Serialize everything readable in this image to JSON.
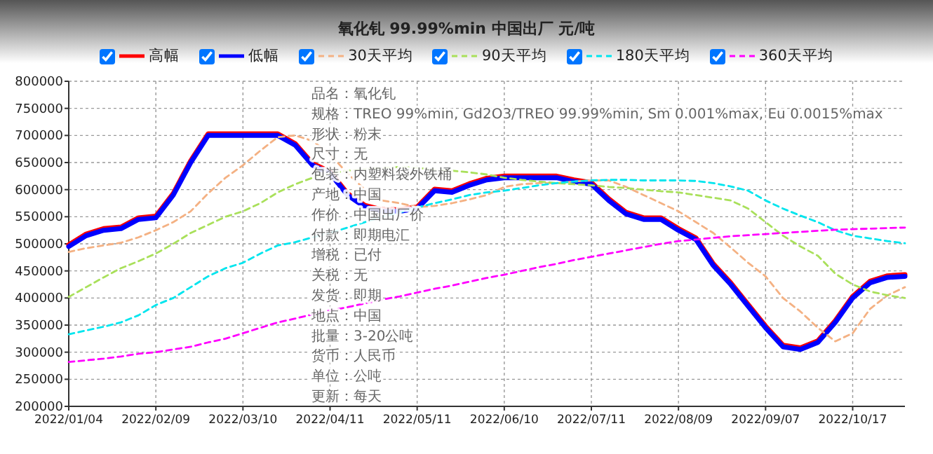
{
  "chart_data": {
    "type": "line",
    "title": "氧化钆 99.99%min 中国出厂 元/吨",
    "categories": [
      "2022/01/04",
      null,
      null,
      null,
      null,
      "2022/02/09",
      null,
      null,
      null,
      null,
      "2022/03/10",
      null,
      null,
      null,
      null,
      "2022/04/11",
      null,
      null,
      null,
      null,
      "2022/05/11",
      null,
      null,
      null,
      null,
      "2022/06/10",
      null,
      null,
      null,
      null,
      "2022/07/11",
      null,
      null,
      null,
      null,
      "2022/08/09",
      null,
      null,
      null,
      null,
      "2022/09/07",
      null,
      null,
      null,
      null,
      "2022/10/17",
      null,
      null,
      null
    ],
    "series": [
      {
        "name": "高幅",
        "color": "#ff0000",
        "line_style": "solid",
        "values": [
          498000,
          518000,
          528000,
          531000,
          548000,
          551000,
          593000,
          653000,
          703000,
          703000,
          703000,
          703000,
          703000,
          685000,
          648000,
          633000,
          593000,
          571000,
          563000,
          563000,
          568000,
          601000,
          598000,
          611000,
          621000,
          625000,
          625000,
          625000,
          625000,
          618000,
          613000,
          583000,
          558000,
          548000,
          548000,
          528000,
          511000,
          463000,
          428000,
          388000,
          348000,
          313000,
          308000,
          321000,
          358000,
          403000,
          431000,
          441000,
          443000
        ]
      },
      {
        "name": "低幅",
        "color": "#0000ff",
        "line_style": "solid",
        "values": [
          495000,
          515000,
          525000,
          528000,
          545000,
          548000,
          590000,
          650000,
          700000,
          700000,
          700000,
          700000,
          700000,
          682000,
          645000,
          630000,
          590000,
          568000,
          560000,
          560000,
          565000,
          598000,
          595000,
          608000,
          618000,
          622000,
          622000,
          622000,
          622000,
          615000,
          610000,
          580000,
          555000,
          545000,
          545000,
          525000,
          508000,
          460000,
          425000,
          385000,
          345000,
          310000,
          305000,
          318000,
          355000,
          400000,
          428000,
          438000,
          440000
        ]
      },
      {
        "name": "30天平均",
        "color": "#f4b183",
        "line_style": "dashed",
        "values": [
          485000,
          492000,
          497000,
          502000,
          512000,
          525000,
          540000,
          560000,
          593000,
          622000,
          645000,
          672000,
          697000,
          700000,
          690000,
          665000,
          630000,
          600000,
          580000,
          575000,
          568000,
          570000,
          575000,
          582000,
          590000,
          605000,
          610000,
          612000,
          612000,
          615000,
          617000,
          617000,
          605000,
          590000,
          575000,
          560000,
          540000,
          520000,
          493000,
          465000,
          440000,
          400000,
          375000,
          345000,
          320000,
          335000,
          380000,
          405000,
          420000
        ]
      },
      {
        "name": "90天平均",
        "color": "#a9e05a",
        "line_style": "dashed",
        "values": [
          402000,
          420000,
          438000,
          455000,
          468000,
          482000,
          500000,
          520000,
          535000,
          550000,
          560000,
          575000,
          595000,
          610000,
          622000,
          630000,
          635000,
          638000,
          640000,
          642000,
          640000,
          637000,
          635000,
          632000,
          628000,
          622000,
          618000,
          615000,
          612000,
          610000,
          608000,
          605000,
          603000,
          600000,
          597000,
          595000,
          590000,
          585000,
          580000,
          565000,
          540000,
          515000,
          495000,
          478000,
          445000,
          425000,
          412000,
          405000,
          400000
        ]
      },
      {
        "name": "180天平均",
        "color": "#00e5ee",
        "line_style": "dashed",
        "values": [
          333000,
          340000,
          347000,
          355000,
          368000,
          387000,
          400000,
          420000,
          440000,
          455000,
          465000,
          482000,
          497000,
          503000,
          512000,
          520000,
          530000,
          540000,
          550000,
          558000,
          567000,
          575000,
          582000,
          590000,
          595000,
          598000,
          603000,
          608000,
          612000,
          615000,
          617000,
          618000,
          618000,
          617000,
          617000,
          617000,
          616000,
          612000,
          606000,
          598000,
          580000,
          565000,
          552000,
          540000,
          525000,
          515000,
          510000,
          505000,
          501000
        ]
      },
      {
        "name": "360天平均",
        "color": "#ff00ff",
        "line_style": "dashed",
        "values": [
          282000,
          285000,
          288000,
          292000,
          297000,
          300000,
          305000,
          310000,
          318000,
          325000,
          335000,
          345000,
          355000,
          362000,
          370000,
          377000,
          383000,
          390000,
          397000,
          403000,
          410000,
          417000,
          423000,
          430000,
          437000,
          443000,
          450000,
          457000,
          463000,
          470000,
          476000,
          482000,
          488000,
          494000,
          500000,
          505000,
          508000,
          511000,
          514000,
          516000,
          518000,
          520000,
          522000,
          524000,
          526000,
          527000,
          528000,
          529000,
          530000
        ]
      }
    ],
    "ylim": [
      200000,
      800000
    ],
    "yticks": [
      200000,
      250000,
      300000,
      350000,
      400000,
      450000,
      500000,
      550000,
      600000,
      650000,
      700000,
      750000,
      800000
    ],
    "grid": true,
    "legend": "top",
    "marker": "none",
    "annotations": [
      "品名：氧化钆",
      "规格：TREO 99%min, Gd2O3/TREO 99.99%min, Sm 0.001%max, Eu 0.0015%max",
      "形状：粉末",
      "尺寸：无",
      "包装：内塑料袋外铁桶",
      "产地：中国",
      "作价：中国出厂价",
      "付款：即期电汇",
      "增税：已付",
      "关税：无",
      "发货：即期",
      "地点：中国",
      "批量：3-20公吨",
      "货币：人民币",
      "单位：公吨",
      "更新：每天"
    ]
  }
}
